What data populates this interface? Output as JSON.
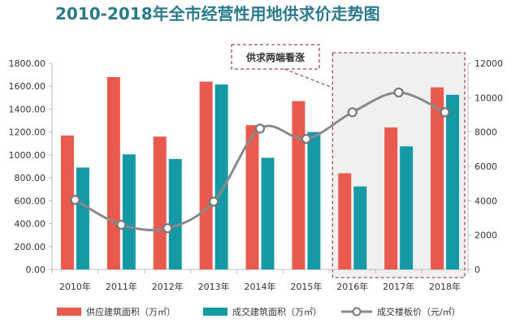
{
  "chart_data": {
    "type": "bar",
    "title": "2010-2018年全市经营性用地供求价走势图",
    "categories": [
      "2010年",
      "2011年",
      "2012年",
      "2013年",
      "2014年",
      "2015年",
      "2016年",
      "2017年",
      "2018年"
    ],
    "series": [
      {
        "name": "供应建筑面积（万㎡）",
        "type": "bar",
        "axis": "left",
        "color": "#e8594e",
        "values": [
          1170,
          1680,
          1160,
          1640,
          1260,
          1470,
          840,
          1240,
          1590
        ]
      },
      {
        "name": "成交建筑面积（万㎡）",
        "type": "bar",
        "axis": "left",
        "color": "#159aa5",
        "values": [
          890,
          1005,
          965,
          1615,
          975,
          1200,
          725,
          1075,
          1525
        ]
      },
      {
        "name": "成交楼板价（元/㎡）",
        "type": "line",
        "axis": "right",
        "color": "#8a8a8a",
        "values": [
          4050,
          2600,
          2400,
          3950,
          8200,
          7600,
          9150,
          10300,
          9150
        ]
      }
    ],
    "y_left": {
      "ticks": [
        "1800.00",
        "1600.00",
        "1400.00",
        "1200.00",
        "1000.00",
        "800.00",
        "600.00",
        "400.00",
        "200.00",
        "0.00"
      ],
      "ylim": [
        0,
        1800
      ]
    },
    "y_right": {
      "ticks": [
        "12000",
        "10000",
        "8000",
        "6000",
        "4000",
        "2000",
        "0"
      ],
      "ylim": [
        0,
        12000
      ]
    },
    "annotation": {
      "text": "供求两端看涨",
      "highlight_categories": [
        "2016年",
        "2017年",
        "2018年"
      ]
    },
    "grid": false,
    "legend_position": "bottom"
  }
}
